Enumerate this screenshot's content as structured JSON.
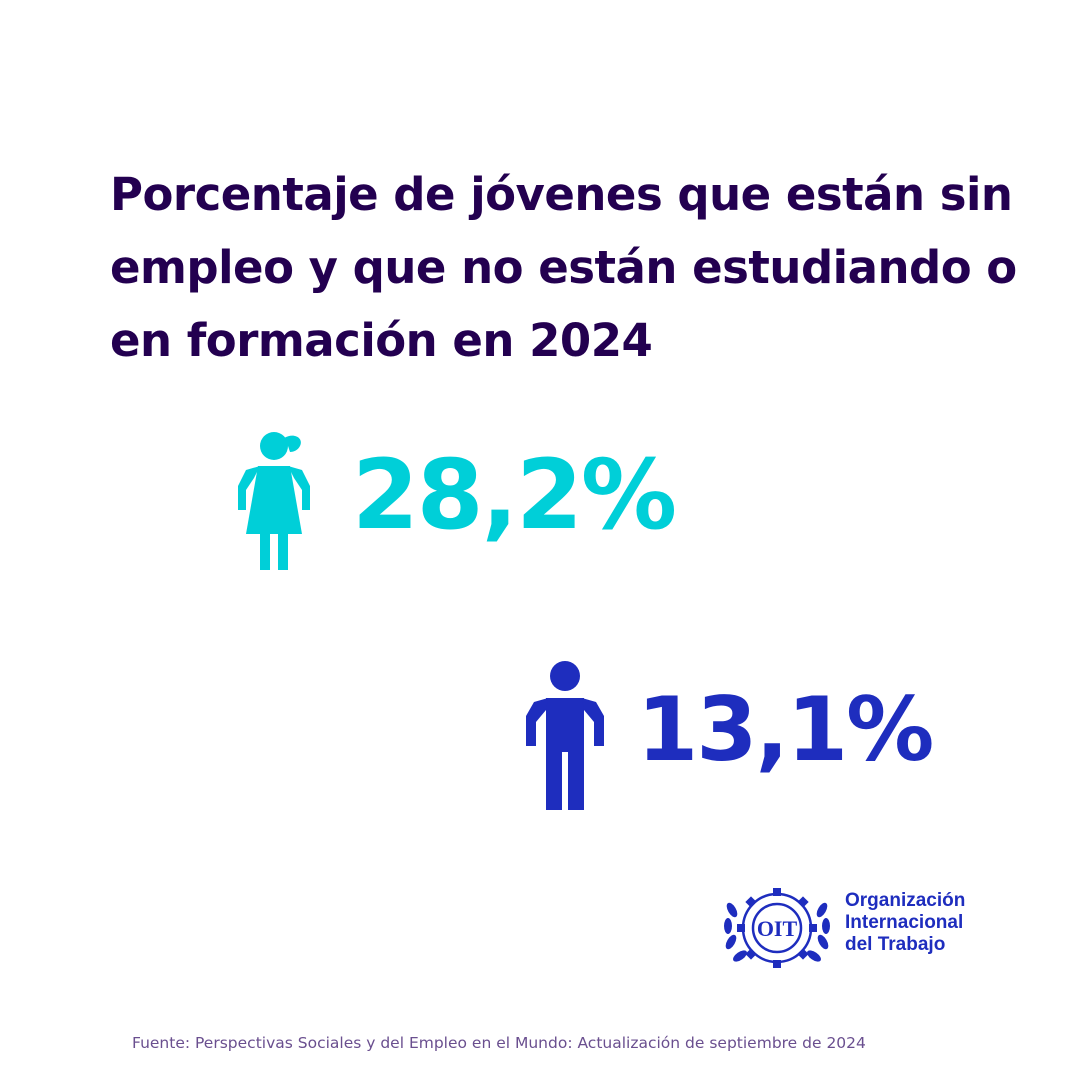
{
  "title": {
    "line1": "Porcentaje de jóvenes que están sin",
    "line2": "empleo y que no están estudiando o",
    "line3": "en formación en 2024"
  },
  "stats": {
    "female": {
      "value": "28,2%",
      "icon": "female-figure-icon"
    },
    "male": {
      "value": "13,1%",
      "icon": "male-figure-icon"
    }
  },
  "organization": {
    "logo_icon": "oit-logo-icon",
    "logo_text": "OIT",
    "name_line1": "Organización",
    "name_line2": "Internacional",
    "name_line3": "del Trabajo"
  },
  "source": "Fuente: Perspectivas Sociales y del Empleo en el Mundo: Actualización de septiembre de 2024",
  "colors": {
    "title": "#230050",
    "female": "#00CFD8",
    "male": "#1E2DBE",
    "source": "#6A4F8F",
    "background": "#FFFFFF"
  }
}
